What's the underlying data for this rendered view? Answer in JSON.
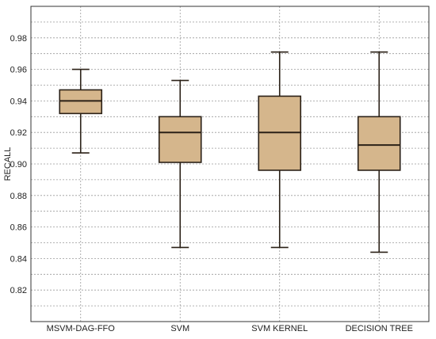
{
  "chart_data": {
    "type": "box",
    "title": "",
    "xlabel": "",
    "ylabel": "RECALL",
    "ylim": [
      0.8,
      1.0
    ],
    "yticks": [
      0.82,
      0.84,
      0.86,
      0.88,
      0.9,
      0.92,
      0.94,
      0.96,
      0.98
    ],
    "ytick_labels": [
      "0.82",
      "0.84",
      "0.86",
      "0.88",
      "0.90",
      "0.92",
      "0.94",
      "0.96",
      "0.98"
    ],
    "grid": true,
    "categories": [
      "MSVM-DAG-FFO",
      "SVM",
      "SVM KERNEL",
      "DECISION TREE"
    ],
    "boxes": [
      {
        "min": 0.907,
        "q1": 0.932,
        "median": 0.94,
        "q3": 0.947,
        "max": 0.96
      },
      {
        "min": 0.847,
        "q1": 0.901,
        "median": 0.92,
        "q3": 0.93,
        "max": 0.953
      },
      {
        "min": 0.847,
        "q1": 0.896,
        "median": 0.92,
        "q3": 0.943,
        "max": 0.971
      },
      {
        "min": 0.844,
        "q1": 0.896,
        "median": 0.912,
        "q3": 0.93,
        "max": 0.971
      }
    ],
    "colors": {
      "box_fill": "#d5b68c",
      "box_stroke": "#2b2117",
      "grid": "#9a9a9a",
      "axis": "#333333",
      "text": "#222222"
    }
  }
}
